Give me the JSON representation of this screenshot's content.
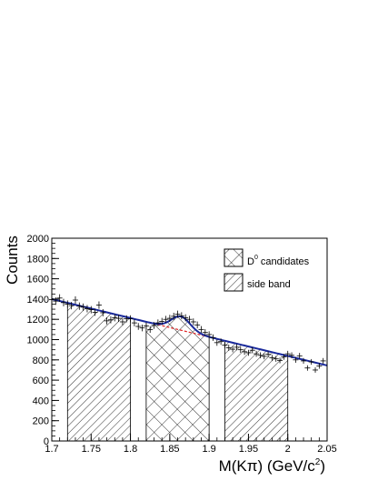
{
  "chart_data": {
    "type": "scatter",
    "xlabel": "M(Kπ) (GeV/c²)",
    "xlabel_parts": {
      "main": "M(Kπ) (GeV/c",
      "sup": "2",
      "tail": ")"
    },
    "ylabel": "Counts",
    "xlim": [
      1.7,
      2.05
    ],
    "ylim": [
      0,
      2000
    ],
    "x_ticks": [
      "1.7",
      "1.75",
      "1.8",
      "1.85",
      "1.9",
      "1.95",
      "2",
      "2.05"
    ],
    "y_ticks": [
      "0",
      "200",
      "400",
      "600",
      "800",
      "1000",
      "1200",
      "1400",
      "1600",
      "1800",
      "2000"
    ],
    "legend": [
      {
        "label": "D0 candidates",
        "label_main": "D",
        "label_sup": "0",
        "label_tail": " candidates",
        "pattern": "crosshatch"
      },
      {
        "label": "side band",
        "pattern": "hatch"
      }
    ],
    "legend_position": "top-right",
    "shaded_regions": [
      {
        "name": "side band",
        "x": [
          1.72,
          1.8
        ],
        "pattern": "hatch"
      },
      {
        "name": "D0 candidates",
        "x": [
          1.82,
          1.9
        ],
        "pattern": "crosshatch"
      },
      {
        "name": "side band",
        "x": [
          1.92,
          2.0
        ],
        "pattern": "hatch"
      }
    ],
    "fit": {
      "background": {
        "type": "linear",
        "y_at_1.7": 1400,
        "y_at_2.05": 745,
        "color": "#dd2222",
        "style": "dashed"
      },
      "signal": {
        "type": "gaussian",
        "mean": 1.864,
        "sigma": 0.012,
        "amplitude": 135,
        "color": "#1a2a9c"
      }
    },
    "series": [
      {
        "x": [
          1.7,
          1.705,
          1.71,
          1.715,
          1.72,
          1.725,
          1.73,
          1.735,
          1.74,
          1.745,
          1.75,
          1.755,
          1.76,
          1.765,
          1.77,
          1.775,
          1.78,
          1.785,
          1.79,
          1.795,
          1.8,
          1.805,
          1.81,
          1.815,
          1.82,
          1.825,
          1.83,
          1.835,
          1.84,
          1.845,
          1.85,
          1.855,
          1.86,
          1.865,
          1.87,
          1.875,
          1.88,
          1.885,
          1.89,
          1.895,
          1.9,
          1.905,
          1.91,
          1.915,
          1.92,
          1.925,
          1.93,
          1.935,
          1.94,
          1.945,
          1.95,
          1.955,
          1.96,
          1.965,
          1.97,
          1.975,
          1.98,
          1.985,
          1.99,
          1.995,
          2.0,
          2.005,
          2.01,
          2.015,
          2.02,
          2.025,
          2.03,
          2.035,
          2.04,
          2.045
        ],
        "y": [
          1395,
          1380,
          1410,
          1365,
          1350,
          1335,
          1390,
          1330,
          1320,
          1305,
          1295,
          1270,
          1340,
          1265,
          1185,
          1195,
          1215,
          1210,
          1175,
          1205,
          1205,
          1165,
          1130,
          1115,
          1135,
          1100,
          1140,
          1165,
          1180,
          1200,
          1210,
          1230,
          1250,
          1235,
          1215,
          1200,
          1175,
          1145,
          1100,
          1070,
          1050,
          1020,
          970,
          980,
          945,
          920,
          905,
          925,
          900,
          880,
          870,
          895,
          860,
          845,
          835,
          855,
          820,
          810,
          795,
          830,
          860,
          845,
          800,
          840,
          790,
          720,
          780,
          700,
          740,
          790
        ]
      }
    ]
  }
}
